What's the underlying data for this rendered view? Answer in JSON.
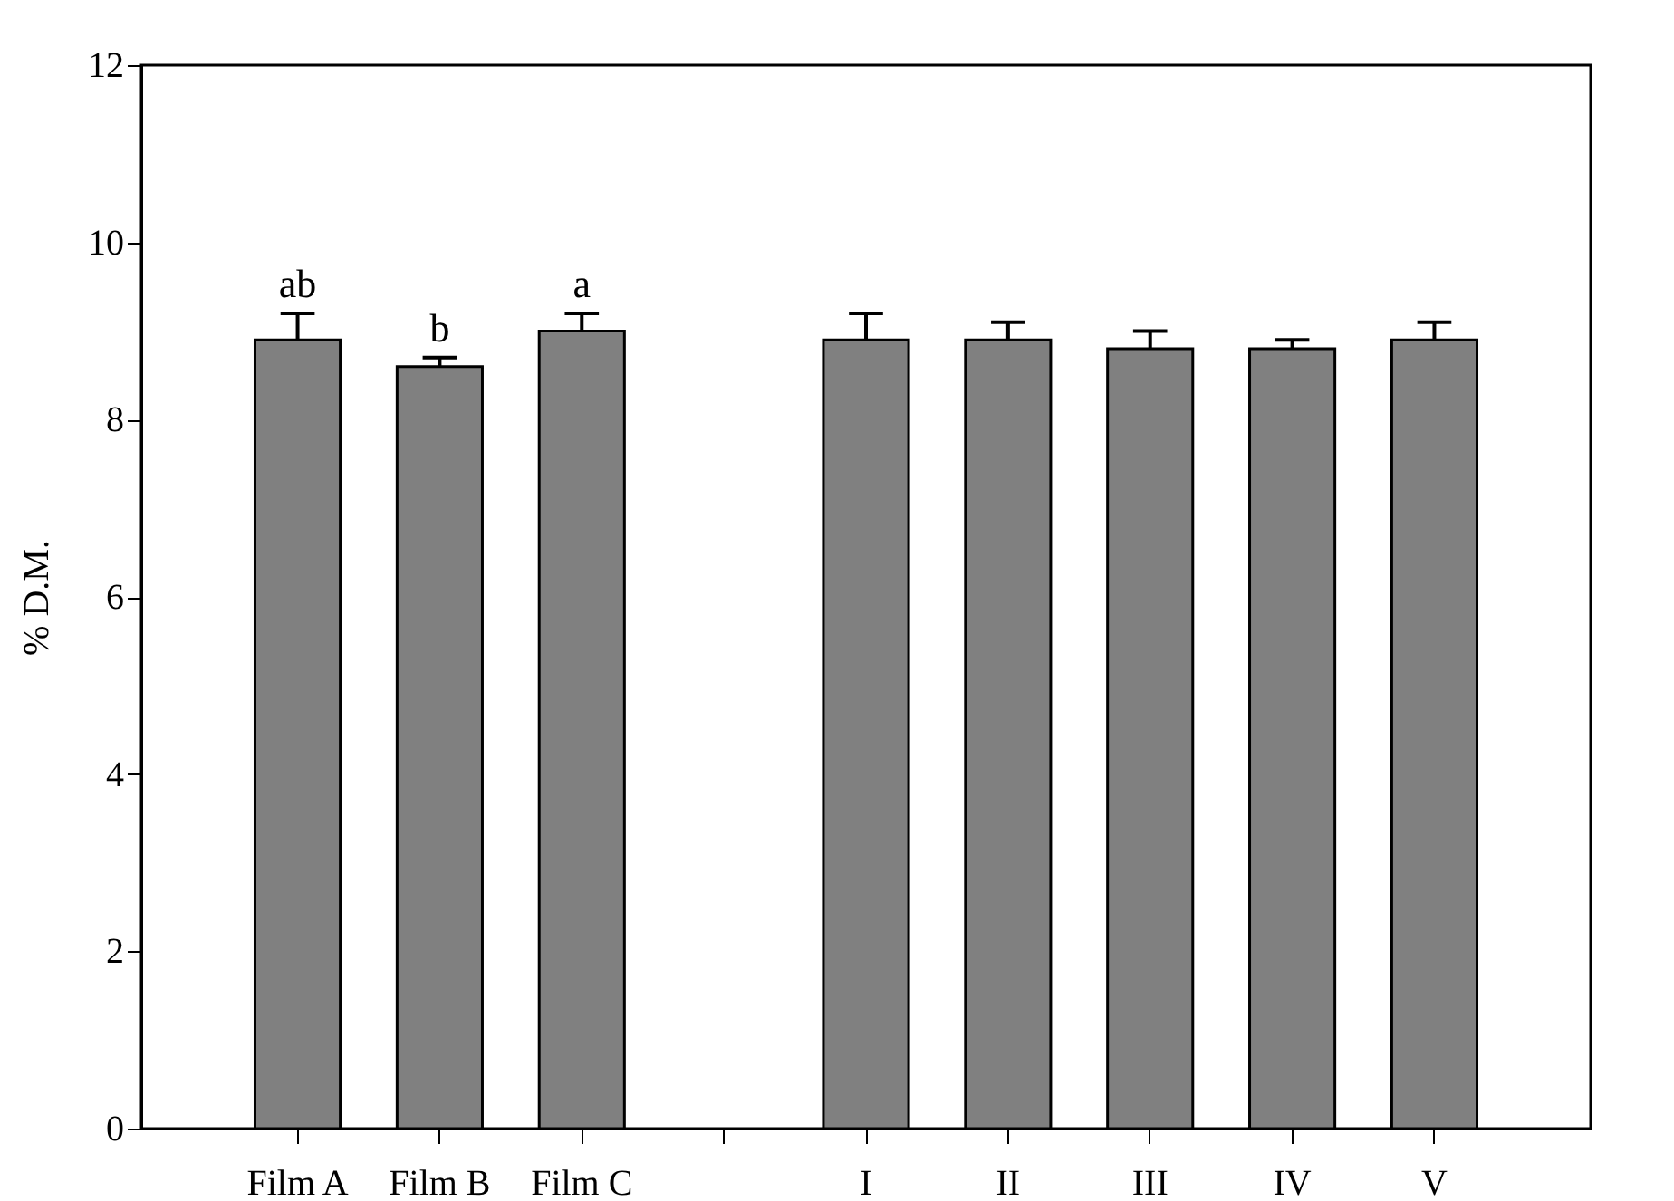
{
  "chart_data": {
    "type": "bar",
    "ylabel": "% D.M.",
    "categories": [
      "Film A",
      "Film B",
      "Film C",
      null,
      "I",
      "II",
      "III",
      "IV",
      "V"
    ],
    "values": [
      8.9,
      8.6,
      9.0,
      null,
      8.9,
      8.9,
      8.8,
      8.8,
      8.9
    ],
    "errors": [
      [
        8.9,
        9.2
      ],
      [
        8.6,
        8.7
      ],
      [
        9.0,
        9.2
      ],
      null,
      [
        8.9,
        9.2
      ],
      [
        8.9,
        9.1
      ],
      [
        8.8,
        9.0
      ],
      [
        8.8,
        8.9
      ],
      [
        8.9,
        9.1
      ]
    ],
    "color": "#808080",
    "annotations": [
      {
        "text": "ab",
        "x": "Film A",
        "y": 9.2
      },
      {
        "text": "b",
        "x": "Film B",
        "y": 8.7
      },
      {
        "text": "a",
        "x": "Film C",
        "y": 9.2
      }
    ],
    "ylim": [
      0,
      12
    ],
    "yticks": [
      0,
      2,
      4,
      6,
      8,
      10,
      12
    ],
    "grid": false
  }
}
